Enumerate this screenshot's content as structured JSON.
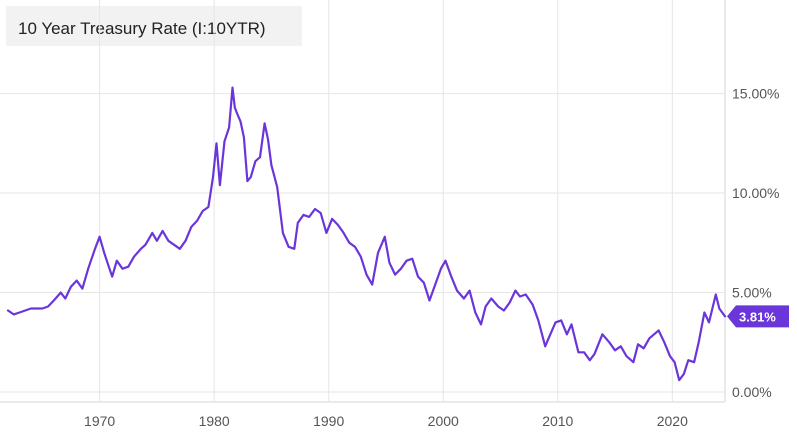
{
  "chart_data": {
    "type": "line",
    "title": "10 Year Treasury Rate (I:10YTR)",
    "last_value_label": "3.81%",
    "xlim": [
      1962,
      2024.6
    ],
    "ylim": [
      -0.5,
      19.3
    ],
    "grid": true,
    "x_ticks": [
      1970,
      1980,
      1990,
      2000,
      2010,
      2020
    ],
    "x_tick_labels": [
      "1970",
      "1980",
      "1990",
      "2000",
      "2010",
      "2020"
    ],
    "y_ticks": [
      0,
      5,
      10,
      15
    ],
    "y_tick_labels": [
      "0.00%",
      "5.00%",
      "10.00%",
      "15.00%"
    ],
    "colors": {
      "line": "#6a36d9",
      "badge": "#6a36d9",
      "grid": "#e6e6e6"
    },
    "series": [
      {
        "x": [
          1962.0,
          1962.5,
          1963.0,
          1964.0,
          1965.0,
          1965.5,
          1966.0,
          1966.6,
          1967.0,
          1967.5,
          1968.0,
          1968.5,
          1969.0,
          1969.6,
          1970.0,
          1970.4,
          1970.8,
          1971.1,
          1971.5,
          1972.0,
          1972.5,
          1973.0,
          1973.6,
          1974.0,
          1974.6,
          1975.0,
          1975.5,
          1976.0,
          1976.5,
          1977.0,
          1977.5,
          1978.0,
          1978.5,
          1979.0,
          1979.5,
          1979.9,
          1980.2,
          1980.5,
          1980.9,
          1981.3,
          1981.6,
          1981.8,
          1982.0,
          1982.3,
          1982.6,
          1982.9,
          1983.2,
          1983.6,
          1984.0,
          1984.4,
          1984.7,
          1985.0,
          1985.5,
          1986.0,
          1986.5,
          1987.0,
          1987.3,
          1987.8,
          1988.3,
          1988.8,
          1989.3,
          1989.8,
          1990.3,
          1990.8,
          1991.3,
          1991.8,
          1992.3,
          1992.8,
          1993.3,
          1993.8,
          1994.3,
          1994.9,
          1995.3,
          1995.8,
          1996.3,
          1996.8,
          1997.3,
          1997.8,
          1998.3,
          1998.8,
          1999.3,
          1999.8,
          2000.2,
          2000.7,
          2001.2,
          2001.8,
          2002.3,
          2002.8,
          2003.3,
          2003.7,
          2004.2,
          2004.8,
          2005.3,
          2005.8,
          2006.3,
          2006.7,
          2007.2,
          2007.8,
          2008.3,
          2008.9,
          2009.2,
          2009.8,
          2010.3,
          2010.8,
          2011.2,
          2011.8,
          2012.3,
          2012.8,
          2013.2,
          2013.9,
          2014.5,
          2015.0,
          2015.5,
          2016.0,
          2016.6,
          2017.0,
          2017.5,
          2018.0,
          2018.8,
          2019.3,
          2019.8,
          2020.2,
          2020.6,
          2021.0,
          2021.4,
          2021.9,
          2022.3,
          2022.8,
          2023.2,
          2023.8,
          2024.1,
          2024.6
        ],
        "values": [
          4.1,
          3.9,
          4.0,
          4.2,
          4.2,
          4.3,
          4.6,
          5.0,
          4.7,
          5.3,
          5.6,
          5.2,
          6.2,
          7.2,
          7.8,
          7.0,
          6.3,
          5.8,
          6.6,
          6.2,
          6.3,
          6.8,
          7.2,
          7.4,
          8.0,
          7.6,
          8.1,
          7.6,
          7.4,
          7.2,
          7.6,
          8.3,
          8.6,
          9.1,
          9.3,
          10.8,
          12.5,
          10.4,
          12.6,
          13.3,
          15.3,
          14.3,
          14.0,
          13.6,
          12.8,
          10.6,
          10.8,
          11.6,
          11.8,
          13.5,
          12.7,
          11.4,
          10.3,
          8.0,
          7.3,
          7.2,
          8.5,
          8.9,
          8.8,
          9.2,
          9.0,
          8.0,
          8.7,
          8.4,
          8.0,
          7.5,
          7.3,
          6.8,
          5.9,
          5.4,
          7.0,
          7.8,
          6.5,
          5.9,
          6.2,
          6.6,
          6.7,
          5.8,
          5.5,
          4.6,
          5.4,
          6.2,
          6.6,
          5.8,
          5.1,
          4.7,
          5.1,
          4.0,
          3.4,
          4.3,
          4.7,
          4.3,
          4.1,
          4.5,
          5.1,
          4.8,
          4.9,
          4.4,
          3.6,
          2.3,
          2.7,
          3.5,
          3.6,
          2.9,
          3.4,
          2.0,
          2.0,
          1.6,
          1.9,
          2.9,
          2.5,
          2.1,
          2.3,
          1.8,
          1.5,
          2.4,
          2.2,
          2.7,
          3.1,
          2.5,
          1.8,
          1.5,
          0.6,
          0.9,
          1.6,
          1.5,
          2.5,
          4.0,
          3.5,
          4.9,
          4.2,
          3.8
        ]
      }
    ]
  }
}
